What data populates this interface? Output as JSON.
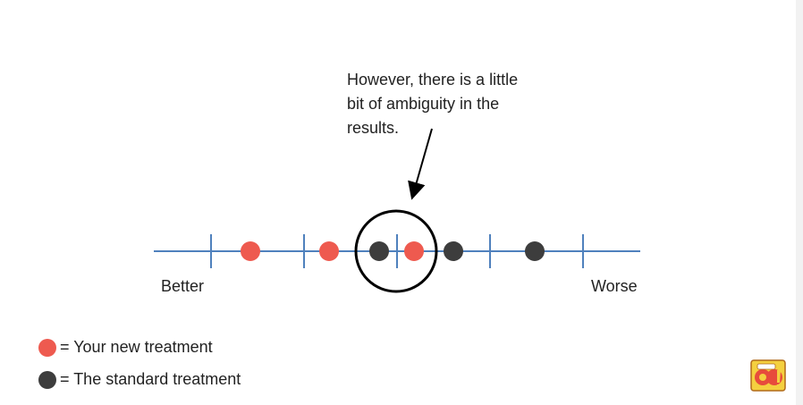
{
  "callout": {
    "lines": [
      "However, there is a little",
      "bit of ambiguity in the",
      "results."
    ]
  },
  "axis": {
    "left_label": "Better",
    "right_label": "Worse"
  },
  "legend": {
    "new_treatment": "= Your new treatment",
    "standard_treatment": "= The standard treatment"
  },
  "colors": {
    "line": "#4f81bd",
    "new_treatment": "#ee5a4f",
    "standard_treatment": "#3d3d3d",
    "circle": "#000000"
  },
  "icons": {
    "logo": "so-logo-icon"
  }
}
